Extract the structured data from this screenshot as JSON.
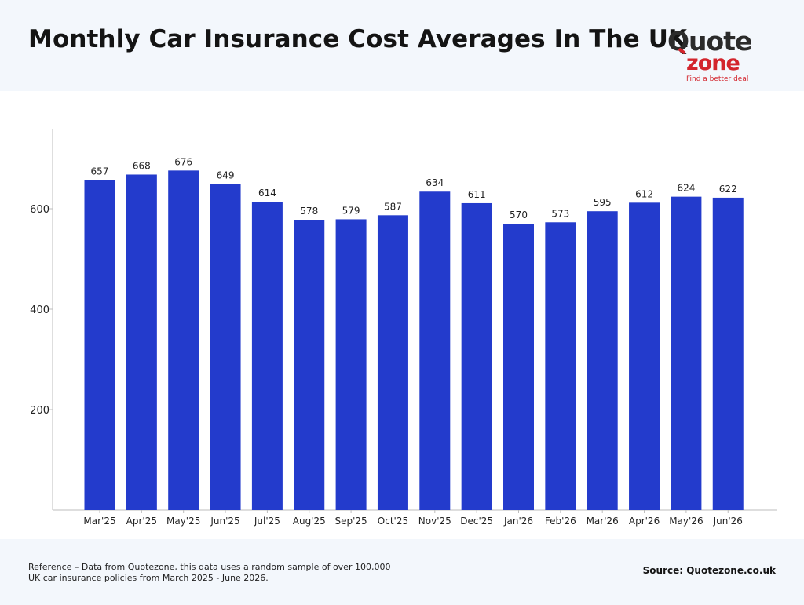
{
  "header": {
    "title": "Monthly Car Insurance Cost Averages In The UK",
    "logo": {
      "word_top": "Quote",
      "word_bottom": "zone",
      "tagline": "Find a better deal"
    }
  },
  "colors": {
    "bar": "#233bcc",
    "axis": "#bdbdbd",
    "header_bg": "#f3f7fc",
    "logo_red": "#d3252d",
    "logo_dark": "#2b2b2b"
  },
  "chart_data": {
    "type": "bar",
    "title": "",
    "xlabel": "",
    "ylabel": "",
    "categories": [
      "Mar'25",
      "Apr'25",
      "May'25",
      "Jun'25",
      "Jul'25",
      "Aug'25",
      "Sep'25",
      "Oct'25",
      "Nov'25",
      "Dec'25",
      "Jan'26",
      "Feb'26",
      "Mar'26",
      "Apr'26",
      "May'26",
      "Jun'26"
    ],
    "values": [
      657,
      668,
      676,
      649,
      614,
      578,
      579,
      587,
      634,
      611,
      570,
      573,
      595,
      612,
      624,
      622
    ],
    "ylim": [
      0,
      760
    ],
    "yticks": [
      200,
      400,
      600
    ],
    "grid": false,
    "data_labels": true
  },
  "footer": {
    "reference": "Reference – Data from Quotezone, this data uses a random sample of over 100,000 UK car insurance policies from March 2025 - June 2026.",
    "source": "Source: Quotezone.co.uk"
  }
}
